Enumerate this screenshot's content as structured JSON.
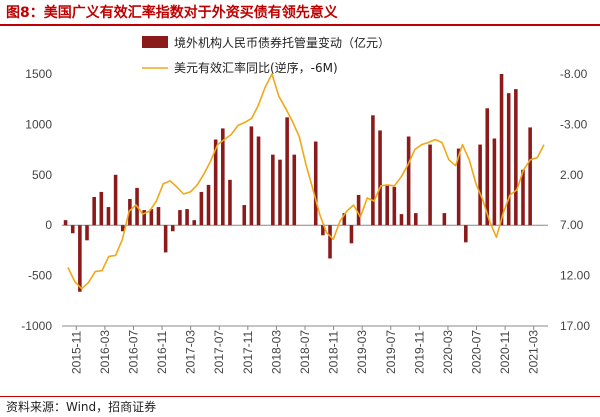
{
  "figure": {
    "label": "图8：",
    "title": "美国广义有效汇率指数对于外资买债有领先意义",
    "source": "资料来源：Wind，招商证券"
  },
  "colors": {
    "bar": "#8b1a1a",
    "line": "#f0a818",
    "accent": "#c00000"
  },
  "chart_data": {
    "type": "bar+line",
    "title": "",
    "legend_position": "top",
    "grid": false,
    "x_ticks": [
      "2015-11",
      "2016-03",
      "2016-07",
      "2016-11",
      "2017-03",
      "2017-07",
      "2017-11",
      "2018-03",
      "2018-07",
      "2018-11",
      "2019-03",
      "2019-07",
      "2019-11",
      "2020-03",
      "2020-07",
      "2020-11",
      "2021-03"
    ],
    "left_axis": {
      "ylim": [
        -1000,
        1500
      ],
      "ticks": [
        "1500",
        "1000",
        "500",
        "0",
        "-500",
        "-1000"
      ]
    },
    "right_axis": {
      "reversed": true,
      "ylim": [
        -8.0,
        17.0
      ],
      "ticks": [
        "-8.00",
        "-3.00",
        "2.00",
        "7.00",
        "12.00",
        "17.00"
      ]
    },
    "series": [
      {
        "name": "境外机构人民币债券托管量变动（亿元）",
        "type": "bar",
        "axis": "left",
        "values": [
          50,
          -80,
          -660,
          -150,
          280,
          330,
          180,
          500,
          -60,
          260,
          370,
          150,
          160,
          180,
          -270,
          -60,
          150,
          160,
          50,
          330,
          400,
          850,
          960,
          450,
          0,
          200,
          980,
          880,
          0,
          700,
          650,
          1070,
          700,
          0,
          0,
          830,
          -100,
          -330,
          0,
          120,
          -180,
          300,
          0,
          1090,
          940,
          400,
          380,
          110,
          880,
          120,
          0,
          800,
          0,
          120,
          0,
          760,
          -170,
          0,
          800,
          1160,
          860,
          1500,
          1310,
          1350,
          550,
          970,
          0,
          0
        ]
      },
      {
        "name": "美元有效汇率同比(逆序，-6M)",
        "type": "line",
        "axis": "right",
        "values": [
          11.2,
          12.6,
          13.3,
          12.7,
          11.6,
          11.5,
          10.1,
          10.0,
          8.4,
          5.6,
          5.0,
          5.9,
          5.6,
          4.6,
          2.9,
          2.6,
          3.2,
          3.9,
          3.7,
          3.0,
          1.9,
          0.6,
          -1.0,
          -1.5,
          -2.0,
          -2.9,
          -3.2,
          -3.6,
          -4.9,
          -6.7,
          -8.0,
          -5.8,
          -4.6,
          -3.3,
          -1.8,
          1.0,
          3.4,
          5.9,
          7.7,
          8.4,
          6.6,
          5.6,
          5.0,
          6.2,
          4.3,
          4.6,
          3.1,
          3.0,
          3.1,
          2.2,
          1.0,
          -0.5,
          -1.0,
          -1.2,
          -1.5,
          -1.2,
          0.5,
          1.1,
          -1.0,
          0.5,
          2.9,
          4.5,
          6.6,
          8.2,
          5.8,
          4.0,
          3.5,
          1.5,
          0.5,
          0.3,
          -1.0
        ]
      }
    ]
  }
}
